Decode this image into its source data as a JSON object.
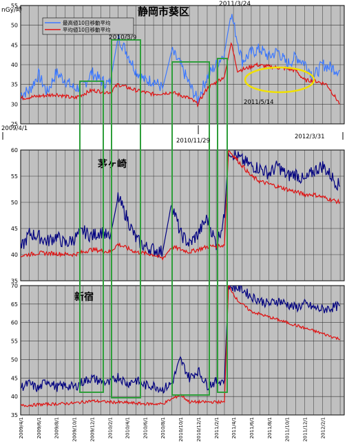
{
  "chart_data": [
    {
      "type": "line",
      "title": "静岡市葵区",
      "ylabel": "nGy/時",
      "ylim": [
        25,
        55
      ],
      "yticks": [
        25,
        30,
        35,
        40,
        45,
        50,
        55
      ],
      "grid": true,
      "legend_placement": "top-left",
      "series": [
        {
          "name": "最高値10日移動平均",
          "color": "#3c78ff",
          "points": [
            [
              "2009-04-01",
              32.5
            ],
            [
              "2009-05-01",
              33.5
            ],
            [
              "2009-06-01",
              37.5
            ],
            [
              "2009-07-01",
              33.0
            ],
            [
              "2009-08-01",
              38.0
            ],
            [
              "2009-09-01",
              36.0
            ],
            [
              "2009-10-01",
              34.0
            ],
            [
              "2009-11-01",
              34.5
            ],
            [
              "2009-12-01",
              38.0
            ],
            [
              "2010-01-01",
              36.0
            ],
            [
              "2010-02-01",
              35.0
            ],
            [
              "2010-03-01",
              47.0
            ],
            [
              "2010-04-01",
              43.0
            ],
            [
              "2010-05-01",
              38.5
            ],
            [
              "2010-06-01",
              36.0
            ],
            [
              "2010-07-01",
              36.0
            ],
            [
              "2010-08-01",
              34.0
            ],
            [
              "2010-09-01",
              43.5
            ],
            [
              "2010-10-01",
              40.0
            ],
            [
              "2010-11-01",
              35.0
            ],
            [
              "2010-11-29",
              31.0
            ],
            [
              "2011-01-01",
              37.0
            ],
            [
              "2011-02-01",
              40.0
            ],
            [
              "2011-03-01",
              43.0
            ],
            [
              "2011-03-24",
              53.0
            ],
            [
              "2011-05-01",
              41.0
            ],
            [
              "2011-06-01",
              43.0
            ],
            [
              "2011-07-01",
              44.0
            ],
            [
              "2011-08-01",
              42.0
            ],
            [
              "2011-09-01",
              43.5
            ],
            [
              "2011-10-01",
              40.0
            ],
            [
              "2011-11-01",
              42.0
            ],
            [
              "2011-12-01",
              40.5
            ],
            [
              "2012-01-01",
              37.0
            ],
            [
              "2012-02-01",
              40.0
            ],
            [
              "2012-03-31",
              38.5
            ]
          ]
        },
        {
          "name": "平均値10日移動平均",
          "color": "#e01010",
          "points": [
            [
              "2009-04-01",
              31.5
            ],
            [
              "2009-06-01",
              32.0
            ],
            [
              "2009-08-01",
              32.5
            ],
            [
              "2009-10-01",
              31.5
            ],
            [
              "2009-12-01",
              33.5
            ],
            [
              "2010-02-01",
              33.0
            ],
            [
              "2010-03-01",
              35.0
            ],
            [
              "2010-05-01",
              33.5
            ],
            [
              "2010-07-01",
              32.5
            ],
            [
              "2010-09-01",
              33.0
            ],
            [
              "2010-11-01",
              31.5
            ],
            [
              "2010-11-29",
              30.0
            ],
            [
              "2011-01-01",
              34.0
            ],
            [
              "2011-03-01",
              37.0
            ],
            [
              "2011-03-24",
              45.5
            ],
            [
              "2011-04-15",
              38.5
            ],
            [
              "2011-05-14",
              39.0
            ],
            [
              "2011-06-15",
              40.0
            ],
            [
              "2011-08-01",
              39.5
            ],
            [
              "2011-10-01",
              39.0
            ],
            [
              "2011-11-01",
              38.5
            ],
            [
              "2011-12-01",
              36.0
            ],
            [
              "2012-01-01",
              36.0
            ],
            [
              "2012-02-15",
              35.0
            ],
            [
              "2012-03-31",
              30.0
            ]
          ]
        }
      ],
      "annotations": [
        "2011/3/24",
        "2010/3/9",
        "2011/5/14",
        "2010/11/29",
        "2009/4/1",
        "2012/3/31"
      ]
    },
    {
      "type": "line",
      "title": "茅ヶ崎",
      "ylim": [
        35,
        60
      ],
      "yticks": [
        35,
        40,
        45,
        50,
        55,
        60
      ],
      "grid": true,
      "series": [
        {
          "color": "#000080",
          "points": [
            [
              "2009-04-01",
              41.0
            ],
            [
              "2009-05-01",
              44.0
            ],
            [
              "2009-06-01",
              43.5
            ],
            [
              "2009-07-01",
              42.5
            ],
            [
              "2009-08-01",
              43.5
            ],
            [
              "2009-09-01",
              42.0
            ],
            [
              "2009-10-01",
              43.0
            ],
            [
              "2009-11-01",
              44.5
            ],
            [
              "2009-12-01",
              43.5
            ],
            [
              "2010-01-01",
              44.5
            ],
            [
              "2010-02-01",
              43.0
            ],
            [
              "2010-03-01",
              51.0
            ],
            [
              "2010-04-01",
              47.0
            ],
            [
              "2010-05-01",
              43.0
            ],
            [
              "2010-06-01",
              41.5
            ],
            [
              "2010-07-01",
              41.0
            ],
            [
              "2010-08-01",
              40.5
            ],
            [
              "2010-09-01",
              50.0
            ],
            [
              "2010-10-01",
              44.0
            ],
            [
              "2010-11-01",
              42.0
            ],
            [
              "2010-12-01",
              44.0
            ],
            [
              "2011-01-01",
              47.0
            ],
            [
              "2011-02-01",
              42.0
            ],
            [
              "2011-03-01",
              47.0
            ],
            [
              "2011-03-15",
              60.0
            ],
            [
              "2011-05-01",
              58.0
            ],
            [
              "2011-06-01",
              57.0
            ],
            [
              "2011-07-01",
              56.5
            ],
            [
              "2011-08-01",
              55.5
            ],
            [
              "2011-09-01",
              57.0
            ],
            [
              "2011-10-01",
              55.0
            ],
            [
              "2011-11-01",
              55.5
            ],
            [
              "2011-12-01",
              54.0
            ],
            [
              "2012-01-01",
              56.0
            ],
            [
              "2012-02-01",
              57.0
            ],
            [
              "2012-03-31",
              53.0
            ]
          ]
        },
        {
          "color": "#e01010",
          "points": [
            [
              "2009-04-01",
              39.8
            ],
            [
              "2009-06-01",
              40.3
            ],
            [
              "2009-08-01",
              40.2
            ],
            [
              "2009-10-01",
              40.0
            ],
            [
              "2009-12-01",
              41.0
            ],
            [
              "2010-02-01",
              40.5
            ],
            [
              "2010-03-01",
              42.0
            ],
            [
              "2010-05-01",
              40.5
            ],
            [
              "2010-07-01",
              40.0
            ],
            [
              "2010-08-01",
              39.2
            ],
            [
              "2010-09-01",
              41.5
            ],
            [
              "2010-11-01",
              40.5
            ],
            [
              "2011-01-01",
              41.5
            ],
            [
              "2011-03-01",
              41.8
            ],
            [
              "2011-03-15",
              60.0
            ],
            [
              "2011-05-01",
              57.0
            ],
            [
              "2011-06-01",
              55.0
            ],
            [
              "2011-07-01",
              54.0
            ],
            [
              "2011-08-01",
              53.5
            ],
            [
              "2011-09-01",
              53.0
            ],
            [
              "2011-10-01",
              52.5
            ],
            [
              "2011-11-01",
              52.0
            ],
            [
              "2011-12-01",
              51.5
            ],
            [
              "2012-01-01",
              51.5
            ],
            [
              "2012-02-01",
              51.0
            ],
            [
              "2012-03-31",
              50.0
            ]
          ]
        }
      ]
    },
    {
      "type": "line",
      "title": "新宿",
      "ylim": [
        35,
        70
      ],
      "yticks": [
        35,
        40,
        45,
        50,
        55,
        60,
        65,
        70
      ],
      "grid": true,
      "xticks": [
        "2009/4/1",
        "2009/6/1",
        "2009/8/1",
        "2009/10/1",
        "2009/12/1",
        "2010/2/1",
        "2010/4/1",
        "2010/6/1",
        "2010/8/1",
        "2010/10/1",
        "2010/12/1",
        "2011/2/1",
        "2011/4/1",
        "2011/6/1",
        "2011/8/1",
        "2011/10/1",
        "2011/12/1",
        "2012/2/1"
      ],
      "series": [
        {
          "color": "#000080",
          "points": [
            [
              "2009-04-01",
              42.5
            ],
            [
              "2009-05-01",
              43.5
            ],
            [
              "2009-06-01",
              42.0
            ],
            [
              "2009-07-01",
              44.5
            ],
            [
              "2009-08-01",
              42.5
            ],
            [
              "2009-09-01",
              43.0
            ],
            [
              "2009-10-01",
              42.5
            ],
            [
              "2009-11-01",
              44.0
            ],
            [
              "2009-12-01",
              45.0
            ],
            [
              "2010-01-01",
              44.0
            ],
            [
              "2010-02-01",
              43.5
            ],
            [
              "2010-03-01",
              45.5
            ],
            [
              "2010-04-01",
              43.5
            ],
            [
              "2010-05-01",
              44.5
            ],
            [
              "2010-06-01",
              43.0
            ],
            [
              "2010-07-01",
              43.0
            ],
            [
              "2010-08-01",
              42.0
            ],
            [
              "2010-09-01",
              43.5
            ],
            [
              "2010-10-01",
              50.0
            ],
            [
              "2010-11-01",
              45.0
            ],
            [
              "2010-12-01",
              47.0
            ],
            [
              "2011-01-01",
              43.0
            ],
            [
              "2011-02-01",
              44.0
            ],
            [
              "2011-03-01",
              44.5
            ],
            [
              "2011-03-15",
              70.0
            ],
            [
              "2011-05-01",
              69.0
            ],
            [
              "2011-06-01",
              67.0
            ],
            [
              "2011-07-01",
              66.0
            ],
            [
              "2011-08-01",
              65.0
            ],
            [
              "2011-09-01",
              66.0
            ],
            [
              "2011-10-01",
              65.0
            ],
            [
              "2011-11-01",
              64.0
            ],
            [
              "2011-12-01",
              65.0
            ],
            [
              "2012-01-01",
              64.0
            ],
            [
              "2012-02-01",
              63.5
            ],
            [
              "2012-03-31",
              64.5
            ]
          ]
        },
        {
          "color": "#e01010",
          "points": [
            [
              "2009-04-01",
              37.5
            ],
            [
              "2009-06-01",
              37.8
            ],
            [
              "2009-08-01",
              38.0
            ],
            [
              "2009-10-01",
              38.2
            ],
            [
              "2009-12-01",
              38.8
            ],
            [
              "2010-02-01",
              38.5
            ],
            [
              "2010-04-01",
              38.3
            ],
            [
              "2010-06-01",
              38.0
            ],
            [
              "2010-08-01",
              38.0
            ],
            [
              "2010-10-01",
              40.5
            ],
            [
              "2010-11-01",
              38.5
            ],
            [
              "2011-01-01",
              38.5
            ],
            [
              "2011-03-01",
              38.5
            ],
            [
              "2011-03-15",
              70.0
            ],
            [
              "2011-04-15",
              66.0
            ],
            [
              "2011-06-01",
              63.0
            ],
            [
              "2011-08-01",
              61.5
            ],
            [
              "2011-10-01",
              60.0
            ],
            [
              "2011-12-01",
              58.5
            ],
            [
              "2012-02-01",
              57.0
            ],
            [
              "2012-03-31",
              55.5
            ]
          ]
        }
      ]
    }
  ]
}
